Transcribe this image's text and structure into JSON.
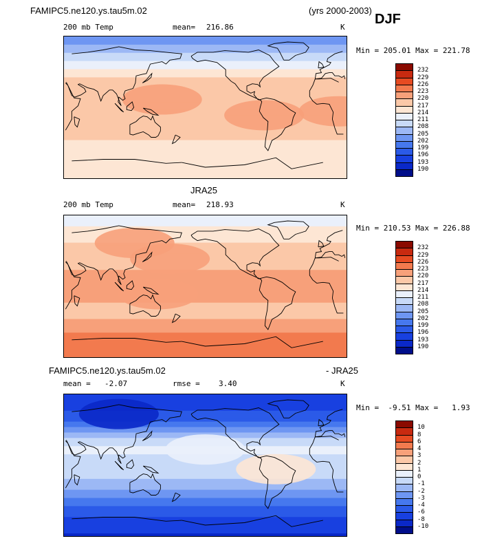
{
  "header": {
    "case_name": "FAMIPC5.ne120.ys.tau5m.02",
    "years": "(yrs 2000-2003)",
    "season": "DJF"
  },
  "chart_data": [
    {
      "type": "heatmap",
      "id": "model",
      "title": "FAMIPC5.ne120.ys.tau5m.02",
      "variable": "200 mb Temp",
      "units": "K",
      "mean_label": "mean=",
      "mean_value": "216.86",
      "stats_text": "Min = 205.01 Max = 221.78",
      "min": 205.01,
      "max": 221.78,
      "levels": [
        "190",
        "193",
        "196",
        "199",
        "202",
        "205",
        "208",
        "211",
        "214",
        "217",
        "220",
        "223",
        "226",
        "229",
        "232"
      ],
      "colors": [
        "#000e8a",
        "#0a28c8",
        "#1840e0",
        "#2b5ae8",
        "#4678ee",
        "#6e96f2",
        "#9cb8f5",
        "#c8daf8",
        "#eaf0fb",
        "#fde6d4",
        "#fbc8a8",
        "#f7a07a",
        "#f27a4e",
        "#e64b22",
        "#c82a10",
        "#8a0a00"
      ],
      "bands": [
        {
          "lat": 90,
          "value": 203
        },
        {
          "lat": 75,
          "value": 206
        },
        {
          "lat": 62,
          "value": 210
        },
        {
          "lat": 50,
          "value": 214
        },
        {
          "lat": 38,
          "value": 217
        },
        {
          "lat": 20,
          "value": 219
        },
        {
          "lat": 0,
          "value": 220
        },
        {
          "lat": -20,
          "value": 219
        },
        {
          "lat": -35,
          "value": 218
        },
        {
          "lat": -50,
          "value": 216
        },
        {
          "lat": -62,
          "value": 214
        },
        {
          "lat": -75,
          "value": 216
        },
        {
          "lat": -90,
          "value": 217
        }
      ],
      "blobs": [
        {
          "lon": 155,
          "lat": 10,
          "value": 221.5
        },
        {
          "lon": -75,
          "lat": -10,
          "value": 221.5
        },
        {
          "lon": 20,
          "lat": -5,
          "value": 221
        }
      ]
    },
    {
      "type": "heatmap",
      "id": "obs",
      "title": "JRA25",
      "variable": "200 mb Temp",
      "units": "K",
      "mean_label": "mean=",
      "mean_value": "218.93",
      "stats_text": "Min = 210.53 Max = 226.88",
      "min": 210.53,
      "max": 226.88,
      "levels": [
        "190",
        "193",
        "196",
        "199",
        "202",
        "205",
        "208",
        "211",
        "214",
        "217",
        "220",
        "223",
        "226",
        "229",
        "232"
      ],
      "colors": [
        "#000e8a",
        "#0a28c8",
        "#1840e0",
        "#2b5ae8",
        "#4678ee",
        "#6e96f2",
        "#9cb8f5",
        "#c8daf8",
        "#eaf0fb",
        "#fde6d4",
        "#fbc8a8",
        "#f7a07a",
        "#f27a4e",
        "#e64b22",
        "#c82a10",
        "#8a0a00"
      ],
      "bands": [
        {
          "lat": 90,
          "value": 213
        },
        {
          "lat": 75,
          "value": 214
        },
        {
          "lat": 62,
          "value": 216
        },
        {
          "lat": 50,
          "value": 218
        },
        {
          "lat": 38,
          "value": 219
        },
        {
          "lat": 20,
          "value": 220
        },
        {
          "lat": 0,
          "value": 221
        },
        {
          "lat": -20,
          "value": 220
        },
        {
          "lat": -35,
          "value": 219.5
        },
        {
          "lat": -50,
          "value": 221
        },
        {
          "lat": -62,
          "value": 224
        },
        {
          "lat": -75,
          "value": 225
        },
        {
          "lat": -90,
          "value": 226
        }
      ],
      "blobs": [
        {
          "lon": 165,
          "lat": 35,
          "value": 222.5
        },
        {
          "lon": 150,
          "lat": -10,
          "value": 222.5
        },
        {
          "lon": 120,
          "lat": 55,
          "value": 221.5
        }
      ]
    },
    {
      "type": "heatmap",
      "id": "diff",
      "title": "FAMIPC5.ne120.ys.tau5m.02",
      "title_suffix": "- JRA25",
      "units": "K",
      "mean_label": "mean =",
      "mean_value": "-2.07",
      "rmse_label": "rmse =",
      "rmse_value": "3.40",
      "stats_text": "Min =  -9.51 Max =   1.93",
      "min": -9.51,
      "max": 1.93,
      "levels": [
        "-10",
        "-8",
        "-6",
        "-4",
        "-3",
        "-2",
        "-1",
        "0",
        "1",
        "2",
        "3",
        "4",
        "6",
        "8",
        "10"
      ],
      "level_values": [
        -10,
        -8,
        -6,
        -4,
        -3,
        -2,
        -1,
        0,
        1,
        2,
        3,
        4,
        6,
        8,
        10
      ],
      "colors": [
        "#000e8a",
        "#0a28c8",
        "#1840e0",
        "#2b5ae8",
        "#4678ee",
        "#6e96f2",
        "#9cb8f5",
        "#c8daf8",
        "#eaf0fb",
        "#fde6d4",
        "#fbc8a8",
        "#f7a07a",
        "#f27a4e",
        "#e64b22",
        "#c82a10",
        "#8a0a00"
      ],
      "bands": [
        {
          "lat": 90,
          "value": -6.5
        },
        {
          "lat": 75,
          "value": -7
        },
        {
          "lat": 62,
          "value": -5
        },
        {
          "lat": 50,
          "value": -3.5
        },
        {
          "lat": 38,
          "value": -1.5
        },
        {
          "lat": 20,
          "value": 0.4
        },
        {
          "lat": 5,
          "value": -0.5
        },
        {
          "lat": -10,
          "value": -0.6
        },
        {
          "lat": -25,
          "value": -1.5
        },
        {
          "lat": -40,
          "value": -2.8
        },
        {
          "lat": -55,
          "value": -4.5
        },
        {
          "lat": -70,
          "value": -6.5
        },
        {
          "lat": -90,
          "value": -8.5
        }
      ],
      "blobs": [
        {
          "lon": 100,
          "lat": 65,
          "value": -9
        },
        {
          "lon": -60,
          "lat": -5,
          "value": 1.2
        },
        {
          "lon": -150,
          "lat": 20,
          "value": 0.8
        }
      ]
    }
  ]
}
